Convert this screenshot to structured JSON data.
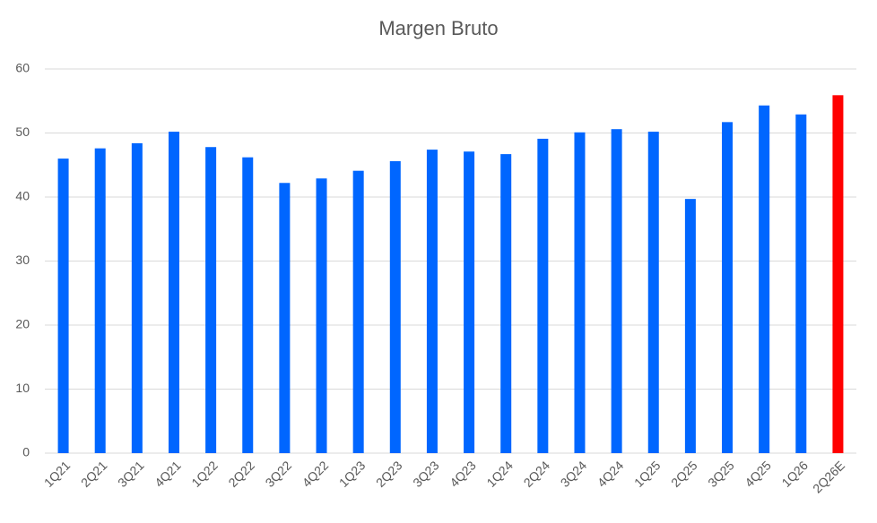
{
  "chart_data": {
    "type": "bar",
    "title": "Margen Bruto",
    "categories": [
      "1Q21",
      "2Q21",
      "3Q21",
      "4Q21",
      "1Q22",
      "2Q22",
      "3Q22",
      "4Q22",
      "1Q23",
      "2Q23",
      "3Q23",
      "4Q23",
      "1Q24",
      "2Q24",
      "3Q24",
      "4Q24",
      "1Q25",
      "2Q25",
      "3Q25",
      "4Q25",
      "1Q26",
      "2Q26E"
    ],
    "values": [
      46.0,
      47.6,
      48.4,
      50.2,
      47.8,
      46.2,
      42.2,
      42.9,
      44.1,
      45.6,
      47.4,
      47.1,
      46.7,
      49.1,
      50.1,
      50.6,
      50.2,
      39.7,
      51.7,
      54.3,
      52.9,
      55.9
    ],
    "colors": [
      "#0066ff",
      "#0066ff",
      "#0066ff",
      "#0066ff",
      "#0066ff",
      "#0066ff",
      "#0066ff",
      "#0066ff",
      "#0066ff",
      "#0066ff",
      "#0066ff",
      "#0066ff",
      "#0066ff",
      "#0066ff",
      "#0066ff",
      "#0066ff",
      "#0066ff",
      "#0066ff",
      "#0066ff",
      "#0066ff",
      "#0066ff",
      "#ff0000"
    ],
    "ylim": [
      0,
      60
    ],
    "yticks": [
      0,
      10,
      20,
      30,
      40,
      50,
      60
    ],
    "grid": true
  }
}
